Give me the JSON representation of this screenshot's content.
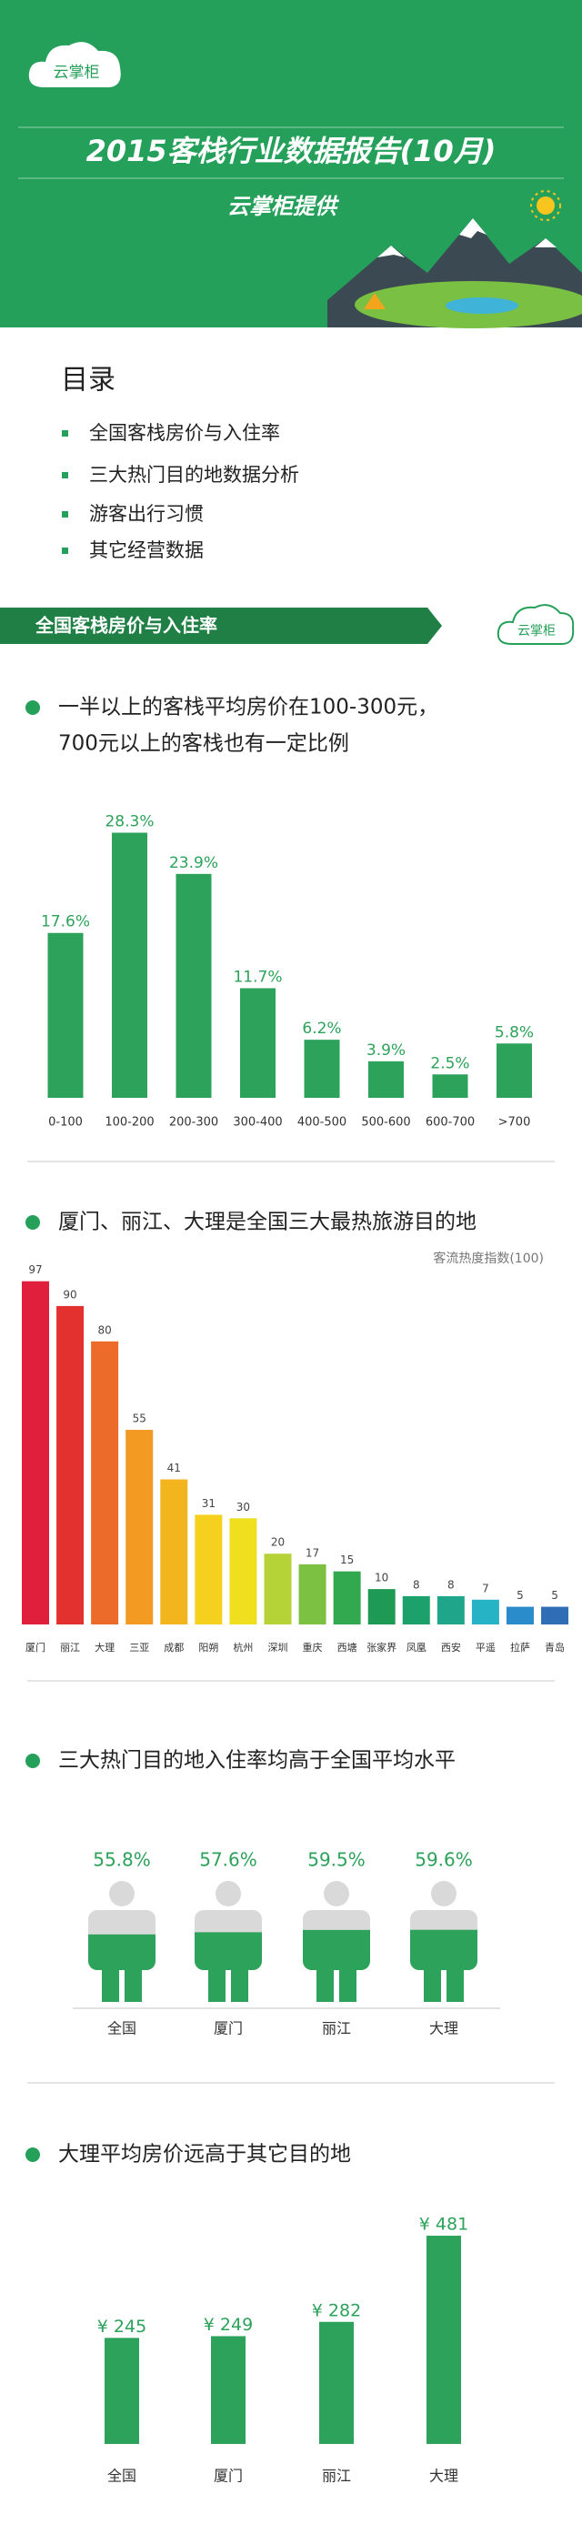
{
  "header": {
    "logo": "云掌柜",
    "title": "2015客栈行业数据报告(10月)",
    "subtitle": "云掌柜提供"
  },
  "toc": {
    "title": "目录",
    "items": [
      "全国客栈房价与入住率",
      "三大热门目的地数据分析",
      "游客出行习惯",
      "其它经营数据"
    ]
  },
  "section": {
    "title": "全国客栈房价与入住率",
    "logo": "云掌柜"
  },
  "chart_data": [
    {
      "type": "bar",
      "title": [
        "一半以上的客栈平均房价在100-300元，",
        "700元以上的客栈也有一定比例"
      ],
      "categories": [
        "0-100",
        "100-200",
        "200-300",
        "300-400",
        "400-500",
        "500-600",
        "600-700",
        ">700"
      ],
      "values": [
        17.6,
        28.3,
        23.9,
        11.7,
        6.2,
        3.9,
        2.5,
        5.8
      ],
      "value_labels": [
        "17.6%",
        "28.3%",
        "23.9%",
        "11.7%",
        "6.2%",
        "3.9%",
        "2.5%",
        "5.8%"
      ],
      "color": "#2ca25a"
    },
    {
      "type": "bar",
      "title": [
        "厦门、丽江、大理是全国三大最热旅游目的地"
      ],
      "subtitle": "客流热度指数(100)",
      "categories": [
        "厦门",
        "丽江",
        "大理",
        "三亚",
        "成都",
        "阳朔",
        "杭州",
        "深圳",
        "重庆",
        "西塘",
        "张家界",
        "凤凰",
        "西安",
        "平遥",
        "拉萨",
        "青岛"
      ],
      "values": [
        97,
        90,
        80,
        55,
        41,
        31,
        30,
        20,
        17,
        15,
        10,
        8,
        8,
        7,
        5,
        5
      ],
      "colors": [
        "#e01f3d",
        "#e3312f",
        "#ec6a2a",
        "#f29a22",
        "#f3b51d",
        "#f5d01f",
        "#f0df1f",
        "#b5d236",
        "#7cc142",
        "#33a94f",
        "#1f9a55",
        "#1ca06c",
        "#1fa68a",
        "#27b3c6",
        "#2a8ccb",
        "#2f6db5"
      ]
    },
    {
      "type": "pictograph",
      "title": [
        "三大热门目的地入住率均高于全国平均水平"
      ],
      "categories": [
        "全国",
        "厦门",
        "丽江",
        "大理"
      ],
      "values": [
        55.8,
        57.6,
        59.5,
        59.6
      ],
      "value_labels": [
        "55.8%",
        "57.6%",
        "59.5%",
        "59.6%"
      ],
      "color": "#2ca25a"
    },
    {
      "type": "bar",
      "title": [
        "大理平均房价远高于其它目的地"
      ],
      "categories": [
        "全国",
        "厦门",
        "丽江",
        "大理"
      ],
      "values": [
        245,
        249,
        282,
        481
      ],
      "value_labels": [
        "¥ 245",
        "¥ 249",
        "¥ 282",
        "¥ 481"
      ],
      "color": "#2ca25a"
    }
  ]
}
